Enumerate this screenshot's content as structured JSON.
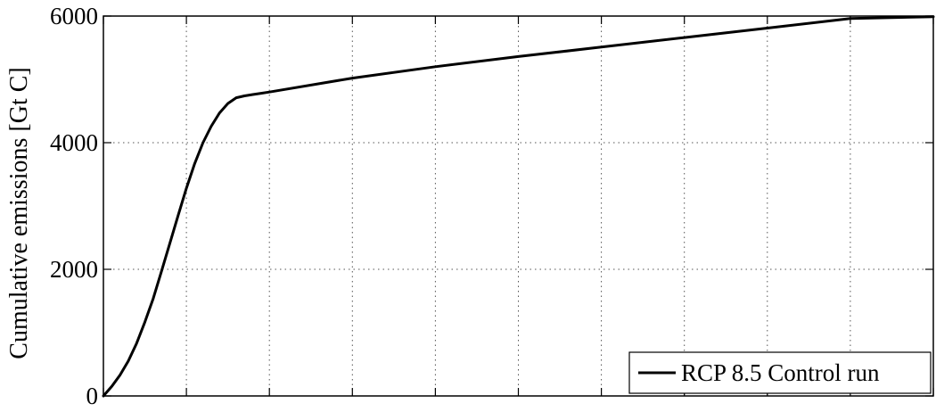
{
  "chart_data": {
    "type": "line",
    "title": "",
    "xlabel": "",
    "ylabel": "Cumulative emissions [Gt C]",
    "xlim": [
      0,
      1000
    ],
    "ylim": [
      0,
      6000
    ],
    "yticks": [
      0,
      2000,
      4000,
      6000
    ],
    "ytick_labels": [
      "0",
      "2000",
      "4000",
      "6000"
    ],
    "xticks": [
      0,
      100,
      200,
      300,
      400,
      500,
      600,
      700,
      800,
      900,
      1000
    ],
    "xtick_labels": [],
    "grid": true,
    "legend_position": "bottom-right",
    "series": [
      {
        "name": "RCP 8.5 Control run",
        "color": "#000000",
        "x": [
          0,
          10,
          20,
          30,
          40,
          50,
          60,
          70,
          80,
          90,
          100,
          110,
          120,
          130,
          140,
          150,
          160,
          170,
          180,
          190,
          200,
          300,
          400,
          500,
          600,
          700,
          800,
          900,
          1000
        ],
        "values": [
          0,
          150,
          330,
          550,
          830,
          1170,
          1540,
          1970,
          2410,
          2850,
          3280,
          3670,
          4000,
          4260,
          4470,
          4620,
          4710,
          4740,
          4760,
          4780,
          4800,
          5020,
          5200,
          5360,
          5510,
          5660,
          5810,
          5960,
          5990
        ]
      }
    ]
  }
}
